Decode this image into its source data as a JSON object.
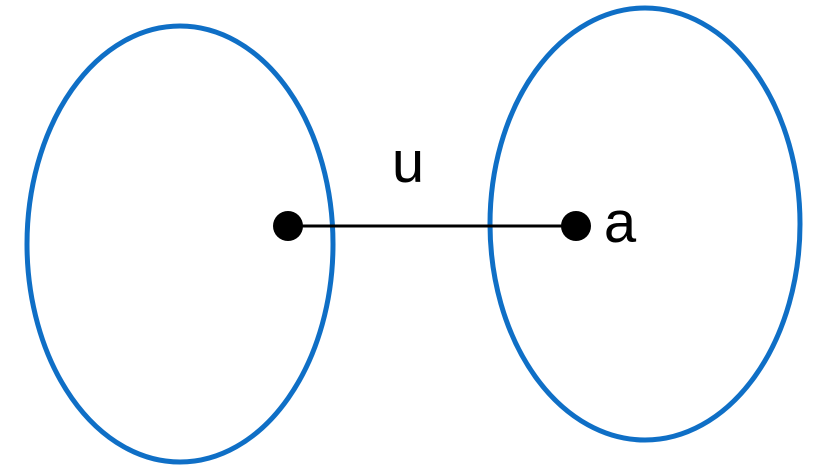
{
  "diagram": {
    "edge_label": "u",
    "vertex_label": "a",
    "colors": {
      "set_outline": "#0F6FC6",
      "edge": "#000000",
      "vertex": "#000000",
      "background": "#FFFFFF"
    }
  }
}
